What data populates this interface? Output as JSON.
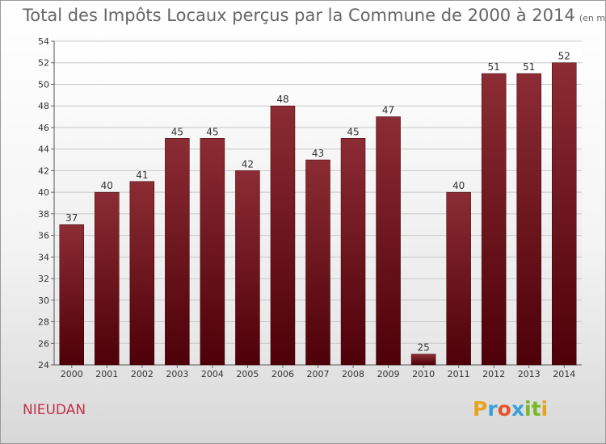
{
  "chart_data": {
    "type": "bar",
    "title": "Total des Impôts Locaux perçus par la Commune de 2000 à 2014",
    "unit": "(en milliers d'€)",
    "categories": [
      "2000",
      "2001",
      "2002",
      "2003",
      "2004",
      "2005",
      "2006",
      "2007",
      "2008",
      "2009",
      "2010",
      "2011",
      "2012",
      "2013",
      "2014"
    ],
    "values": [
      37,
      40,
      41,
      45,
      45,
      42,
      48,
      43,
      45,
      47,
      25,
      40,
      51,
      51,
      52
    ],
    "value_labels": [
      "37",
      "40",
      "41",
      "45",
      "45",
      "42",
      "48",
      "43",
      "45",
      "47",
      "25",
      "40",
      "51",
      "51",
      "52"
    ],
    "ylim": [
      24,
      54
    ],
    "yticks": [
      "24",
      "26",
      "28",
      "30",
      "32",
      "34",
      "36",
      "38",
      "40",
      "42",
      "44",
      "46",
      "48",
      "50",
      "52",
      "54"
    ],
    "grid": true,
    "bar_color": "#7a1a22",
    "xlabel": "",
    "ylabel": ""
  },
  "commune": "NIEUDAN",
  "logo": {
    "letters": [
      "P",
      "r",
      "o",
      "x",
      "i",
      "t",
      "i"
    ],
    "colors": [
      "#e8a21c",
      "#3aa0d8",
      "#e8542c",
      "#3aa0d8",
      "#7ab829",
      "#7ab829",
      "#e8a21c"
    ]
  }
}
